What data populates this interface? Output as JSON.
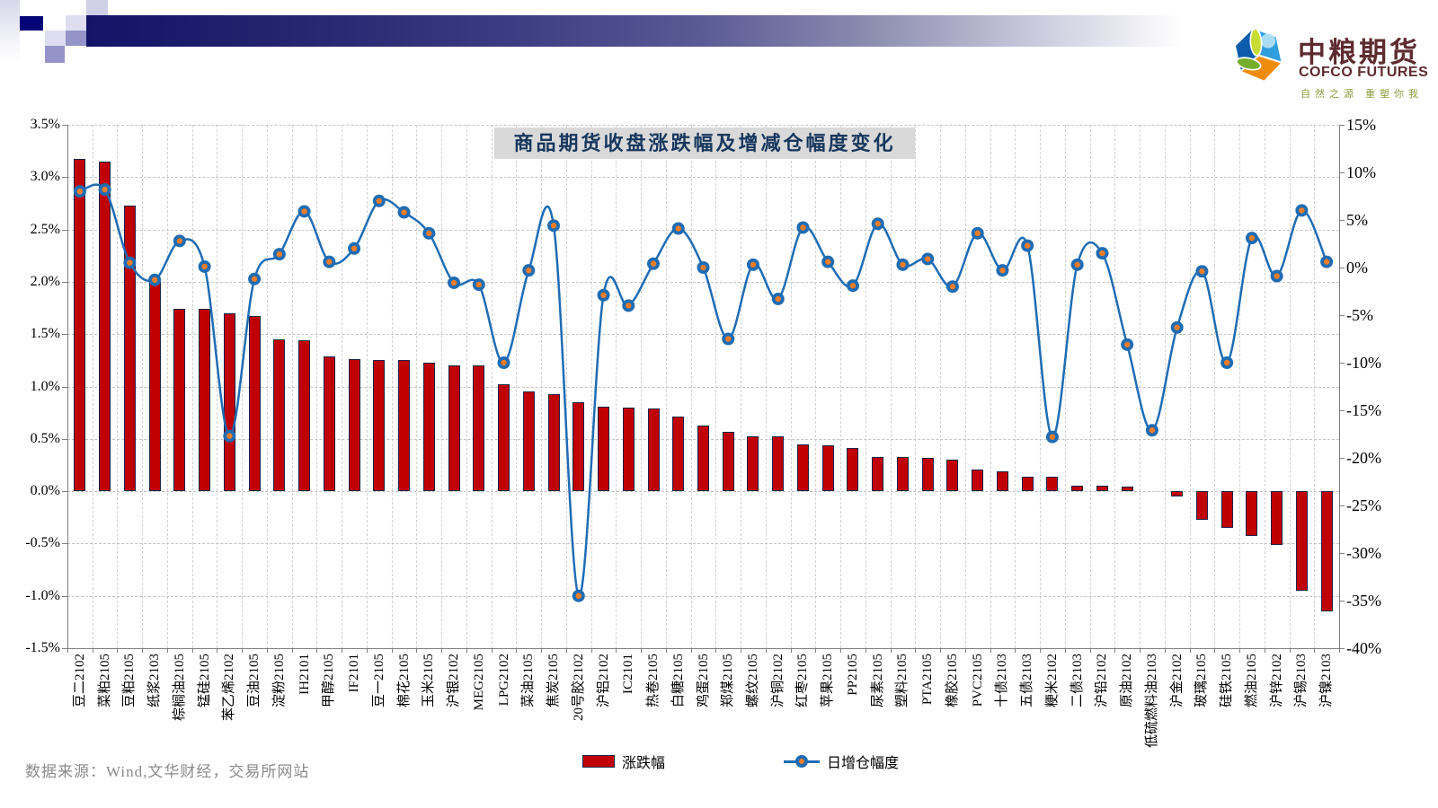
{
  "logo": {
    "name_cn": "中粮期货",
    "name_en": "COFCO FUTURES",
    "slogan": "自然之源 重塑你我"
  },
  "chart": {
    "title": "商品期货收盘涨跌幅及增减仓幅度变化",
    "source_note": "数据来源：Wind,文华财经，交易所网站"
  },
  "chart_data": {
    "type": "combo-bar-line",
    "title": "商品期货收盘涨跌幅及增减仓幅度变化",
    "grid": true,
    "legend_position": "bottom",
    "categories": [
      "豆二2102",
      "菜粕2105",
      "豆粕2105",
      "纸浆2103",
      "棕榈油2105",
      "锰硅2105",
      "苯乙烯2102",
      "豆油2105",
      "淀粉2105",
      "IH2101",
      "甲醇2105",
      "IF2101",
      "豆一2105",
      "棉花2105",
      "玉米2105",
      "沪银2102",
      "MEG2105",
      "LPG2102",
      "菜油2105",
      "焦炭2105",
      "20号胶2102",
      "沪铝2102",
      "IC2101",
      "热卷2105",
      "白糖2105",
      "鸡蛋2105",
      "郑煤2105",
      "螺纹2105",
      "沪铜2102",
      "红枣2105",
      "苹果2105",
      "PP2105",
      "尿素2105",
      "塑料2105",
      "PTA2105",
      "橡胶2105",
      "PVC2105",
      "十债2103",
      "五债2103",
      "粳米2102",
      "二债2103",
      "沪铅2102",
      "原油2102",
      "低硫燃料油2103",
      "沪金2102",
      "玻璃2105",
      "硅铁2105",
      "燃油2105",
      "沪锌2102",
      "沪锡2103",
      "沪镍2103"
    ],
    "series": [
      {
        "name": "涨跌幅",
        "type": "bar",
        "axis": "left",
        "unit": "%",
        "color": "#c00000",
        "values": [
          3.17,
          3.15,
          2.73,
          2.0,
          1.74,
          1.74,
          1.7,
          1.67,
          1.45,
          1.44,
          1.29,
          1.26,
          1.25,
          1.25,
          1.23,
          1.2,
          1.2,
          1.02,
          0.95,
          0.93,
          0.85,
          0.81,
          0.8,
          0.79,
          0.71,
          0.63,
          0.57,
          0.52,
          0.52,
          0.45,
          0.44,
          0.41,
          0.33,
          0.33,
          0.32,
          0.3,
          0.21,
          0.19,
          0.14,
          0.14,
          0.05,
          0.05,
          0.04,
          0.0,
          -0.05,
          -0.27,
          -0.35,
          -0.43,
          -0.51,
          -0.95,
          -1.15
        ]
      },
      {
        "name": "日增仓幅度",
        "type": "line",
        "axis": "right",
        "unit": "%",
        "color": "#1f6cb4",
        "marker_fill": "#ef7d27",
        "values": [
          8.0,
          8.2,
          0.5,
          -1.3,
          2.8,
          0.1,
          -17.7,
          -1.2,
          1.4,
          5.9,
          0.6,
          2.0,
          7.0,
          5.8,
          3.6,
          -1.6,
          -1.8,
          -10.0,
          -0.3,
          4.4,
          -34.5,
          -2.9,
          -4.0,
          0.4,
          4.1,
          0.0,
          -7.5,
          0.3,
          -3.3,
          4.2,
          0.6,
          -1.9,
          4.6,
          0.3,
          0.9,
          -2.0,
          3.6,
          -0.3,
          2.3,
          -17.8,
          0.3,
          1.5,
          -8.1,
          -17.1,
          -6.3,
          -0.4,
          -10.0,
          3.1,
          -0.9,
          6.0,
          0.6
        ]
      }
    ],
    "left_axis": {
      "min": -1.5,
      "max": 3.5,
      "step": 0.5,
      "ticks": [
        "3.5%",
        "3.0%",
        "2.5%",
        "2.0%",
        "1.5%",
        "1.0%",
        "0.5%",
        "0.0%",
        "-0.5%",
        "-1.0%",
        "-1.5%"
      ]
    },
    "right_axis": {
      "min": -40,
      "max": 15,
      "step": 5,
      "ticks": [
        "15%",
        "10%",
        "5%",
        "0%",
        "-5%",
        "-10%",
        "-15%",
        "-20%",
        "-25%",
        "-30%",
        "-35%",
        "-40%"
      ]
    }
  }
}
